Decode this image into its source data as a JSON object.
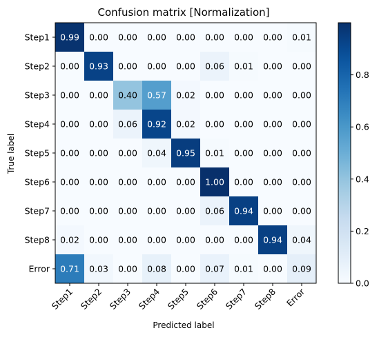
{
  "chart_data": {
    "type": "heatmap",
    "title": "Confusion matrix [Normalization]",
    "xlabel": "Predicted label",
    "ylabel": "True label",
    "x_categories": [
      "Step1",
      "Step2",
      "Step3",
      "Step4",
      "Step5",
      "Step6",
      "Step7",
      "Step8",
      "Error"
    ],
    "y_categories": [
      "Step1",
      "Step2",
      "Step3",
      "Step4",
      "Step5",
      "Step6",
      "Step7",
      "Step8",
      "Error"
    ],
    "values": [
      [
        0.99,
        0.0,
        0.0,
        0.0,
        0.0,
        0.0,
        0.0,
        0.0,
        0.01
      ],
      [
        0.0,
        0.93,
        0.0,
        0.0,
        0.0,
        0.06,
        0.01,
        0.0,
        0.0
      ],
      [
        0.0,
        0.0,
        0.4,
        0.57,
        0.02,
        0.0,
        0.0,
        0.0,
        0.0
      ],
      [
        0.0,
        0.0,
        0.06,
        0.92,
        0.02,
        0.0,
        0.0,
        0.0,
        0.0
      ],
      [
        0.0,
        0.0,
        0.0,
        0.04,
        0.95,
        0.01,
        0.0,
        0.0,
        0.0
      ],
      [
        0.0,
        0.0,
        0.0,
        0.0,
        0.0,
        1.0,
        0.0,
        0.0,
        0.0
      ],
      [
        0.0,
        0.0,
        0.0,
        0.0,
        0.0,
        0.06,
        0.94,
        0.0,
        0.0
      ],
      [
        0.02,
        0.0,
        0.0,
        0.0,
        0.0,
        0.0,
        0.0,
        0.94,
        0.04
      ],
      [
        0.71,
        0.03,
        0.0,
        0.08,
        0.0,
        0.07,
        0.01,
        0.0,
        0.09
      ]
    ],
    "colormap": "Blues",
    "colorbar": {
      "range": [
        0.0,
        1.0
      ],
      "ticks": [
        "0.0",
        "0.2",
        "0.4",
        "0.6",
        "0.8"
      ]
    },
    "text_color_dark": "#000000",
    "text_color_light": "#ffffff"
  }
}
